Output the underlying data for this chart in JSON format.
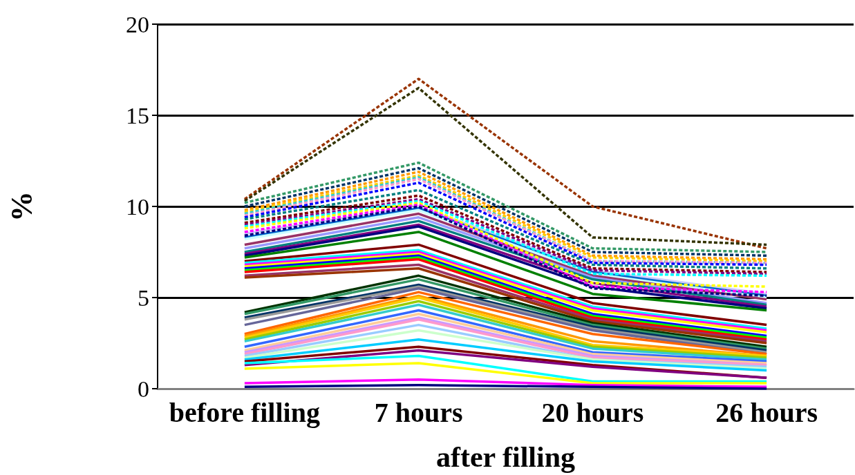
{
  "chart_data": {
    "type": "line",
    "xlabel": "after filling",
    "ylabel": "%",
    "categories": [
      "before filling",
      "7 hours",
      "20 hours",
      "26 hours"
    ],
    "ylim": [
      0,
      20
    ],
    "yticks": [
      0,
      5,
      10,
      15,
      20
    ],
    "grid": "y",
    "marker": "none",
    "series": [
      {
        "color": "#993300",
        "line_style": "dashed",
        "values": [
          10.4,
          17.0,
          10.0,
          7.7
        ]
      },
      {
        "color": "#333300",
        "line_style": "dashed",
        "values": [
          10.3,
          16.5,
          8.3,
          7.9
        ]
      },
      {
        "color": "#339966",
        "line_style": "dashed",
        "values": [
          10.2,
          12.4,
          7.7,
          7.5
        ]
      },
      {
        "color": "#003366",
        "line_style": "dashed",
        "values": [
          10.0,
          12.1,
          7.5,
          7.3
        ]
      },
      {
        "color": "#ff9900",
        "line_style": "dashed",
        "values": [
          9.8,
          11.9,
          7.3,
          7.1
        ]
      },
      {
        "color": "#ffcc00",
        "line_style": "dashed",
        "values": [
          9.7,
          11.7,
          7.2,
          7.0
        ]
      },
      {
        "color": "#33cccc",
        "line_style": "dashed",
        "values": [
          9.6,
          11.6,
          7.0,
          6.9
        ]
      },
      {
        "color": "#ff99cc",
        "line_style": "dashed",
        "values": [
          9.5,
          11.5,
          7.0,
          6.9
        ]
      },
      {
        "color": "#0000ff",
        "line_style": "dashed",
        "values": [
          9.4,
          11.3,
          6.9,
          6.8
        ]
      },
      {
        "color": "#008080",
        "line_style": "dashed",
        "values": [
          9.3,
          10.9,
          6.8,
          6.6
        ]
      },
      {
        "color": "#800000",
        "line_style": "dashed",
        "values": [
          9.1,
          10.6,
          6.6,
          6.4
        ]
      },
      {
        "color": "#800080",
        "line_style": "dashed",
        "values": [
          9.0,
          10.4,
          6.5,
          6.3
        ]
      },
      {
        "color": "#00ffff",
        "line_style": "dashed",
        "values": [
          8.9,
          10.3,
          6.3,
          6.2
        ]
      },
      {
        "color": "#ffff00",
        "line_style": "dashed",
        "values": [
          8.8,
          10.2,
          5.8,
          5.6
        ]
      },
      {
        "color": "#ff00ff",
        "line_style": "dashed",
        "values": [
          8.6,
          10.1,
          5.6,
          5.3
        ]
      },
      {
        "color": "#000080",
        "line_style": "dashed",
        "values": [
          8.4,
          10.0,
          5.5,
          5.1
        ]
      },
      {
        "color": "#ccccff",
        "line_style": "solid",
        "values": [
          8.5,
          10.0,
          6.5,
          5.2
        ]
      },
      {
        "color": "#0066cc",
        "line_style": "solid",
        "values": [
          8.3,
          9.9,
          6.4,
          5.1
        ]
      },
      {
        "color": "#ccffff",
        "line_style": "solid",
        "values": [
          8.2,
          9.8,
          6.3,
          5.0
        ]
      },
      {
        "color": "#993366",
        "line_style": "solid",
        "values": [
          7.9,
          9.6,
          6.2,
          4.9
        ]
      },
      {
        "color": "#9999ff",
        "line_style": "solid",
        "values": [
          7.7,
          9.4,
          6.1,
          4.7
        ]
      },
      {
        "color": "#008080",
        "line_style": "solid",
        "values": [
          7.5,
          9.2,
          6.0,
          4.6
        ]
      },
      {
        "color": "#800080",
        "line_style": "solid",
        "values": [
          7.4,
          9.0,
          5.8,
          4.5
        ]
      },
      {
        "color": "#000080",
        "line_style": "solid",
        "values": [
          7.3,
          8.9,
          5.6,
          4.4
        ]
      },
      {
        "color": "#008000",
        "line_style": "solid",
        "values": [
          7.2,
          8.6,
          5.2,
          4.3
        ]
      },
      {
        "color": "#800000",
        "line_style": "solid",
        "values": [
          7.0,
          7.9,
          4.7,
          3.5
        ]
      },
      {
        "color": "#00ffff",
        "line_style": "solid",
        "values": [
          6.9,
          7.6,
          4.5,
          3.3
        ]
      },
      {
        "color": "#ff00ff",
        "line_style": "solid",
        "values": [
          6.8,
          7.5,
          4.4,
          3.2
        ]
      },
      {
        "color": "#ffff00",
        "line_style": "solid",
        "values": [
          6.7,
          7.4,
          4.3,
          3.1
        ]
      },
      {
        "color": "#0000ff",
        "line_style": "solid",
        "values": [
          6.6,
          7.3,
          4.1,
          2.9
        ]
      },
      {
        "color": "#00ff00",
        "line_style": "solid",
        "values": [
          6.5,
          7.2,
          4.0,
          2.8
        ]
      },
      {
        "color": "#ff0000",
        "line_style": "solid",
        "values": [
          6.4,
          7.1,
          3.9,
          2.7
        ]
      },
      {
        "color": "#993366",
        "line_style": "solid",
        "values": [
          6.2,
          6.8,
          3.8,
          2.6
        ]
      },
      {
        "color": "#993300",
        "line_style": "solid",
        "values": [
          6.1,
          6.6,
          3.7,
          2.5
        ]
      },
      {
        "color": "#003300",
        "line_style": "solid",
        "values": [
          4.2,
          6.2,
          3.6,
          2.3
        ]
      },
      {
        "color": "#339966",
        "line_style": "solid",
        "values": [
          4.1,
          6.0,
          3.5,
          2.2
        ]
      },
      {
        "color": "#003366",
        "line_style": "solid",
        "values": [
          3.9,
          5.7,
          3.4,
          2.1
        ]
      },
      {
        "color": "#999999",
        "line_style": "solid",
        "values": [
          3.8,
          5.6,
          3.3,
          2.0
        ]
      },
      {
        "color": "#666699",
        "line_style": "solid",
        "values": [
          3.5,
          5.5,
          3.2,
          1.9
        ]
      },
      {
        "color": "#ff6600",
        "line_style": "solid",
        "values": [
          3.0,
          5.3,
          3.0,
          1.9
        ]
      },
      {
        "color": "#ff9900",
        "line_style": "solid",
        "values": [
          2.9,
          5.1,
          2.6,
          1.8
        ]
      },
      {
        "color": "#ffcc00",
        "line_style": "solid",
        "values": [
          2.8,
          5.0,
          2.4,
          1.8
        ]
      },
      {
        "color": "#99cc00",
        "line_style": "solid",
        "values": [
          2.7,
          4.8,
          2.3,
          1.7
        ]
      },
      {
        "color": "#33cccc",
        "line_style": "solid",
        "values": [
          2.6,
          4.6,
          2.2,
          1.6
        ]
      },
      {
        "color": "#3366ff",
        "line_style": "solid",
        "values": [
          2.3,
          4.3,
          2.0,
          1.5
        ]
      },
      {
        "color": "#ffcc99",
        "line_style": "solid",
        "values": [
          2.1,
          4.1,
          1.9,
          1.4
        ]
      },
      {
        "color": "#cc99ff",
        "line_style": "solid",
        "values": [
          2.0,
          3.9,
          1.8,
          1.3
        ]
      },
      {
        "color": "#ff99cc",
        "line_style": "solid",
        "values": [
          1.9,
          3.8,
          1.7,
          1.3
        ]
      },
      {
        "color": "#99ccff",
        "line_style": "solid",
        "values": [
          1.8,
          3.5,
          1.6,
          1.2
        ]
      },
      {
        "color": "#ccffcc",
        "line_style": "solid",
        "values": [
          1.7,
          3.2,
          1.6,
          1.1
        ]
      },
      {
        "color": "#00ccff",
        "line_style": "solid",
        "values": [
          1.6,
          2.7,
          1.5,
          1.0
        ]
      },
      {
        "color": "#800000",
        "line_style": "solid",
        "values": [
          1.5,
          2.3,
          1.3,
          0.6
        ]
      },
      {
        "color": "#800080",
        "line_style": "solid",
        "values": [
          1.3,
          2.1,
          1.2,
          0.6
        ]
      },
      {
        "color": "#00ffff",
        "line_style": "solid",
        "values": [
          1.4,
          1.8,
          0.4,
          0.4
        ]
      },
      {
        "color": "#ffff00",
        "line_style": "solid",
        "values": [
          1.1,
          1.4,
          0.3,
          0.3
        ]
      },
      {
        "color": "#ff00ff",
        "line_style": "solid",
        "values": [
          0.3,
          0.5,
          0.2,
          0.1
        ]
      },
      {
        "color": "#000080",
        "line_style": "solid",
        "values": [
          0.1,
          0.2,
          0.1,
          0.0
        ]
      }
    ]
  }
}
